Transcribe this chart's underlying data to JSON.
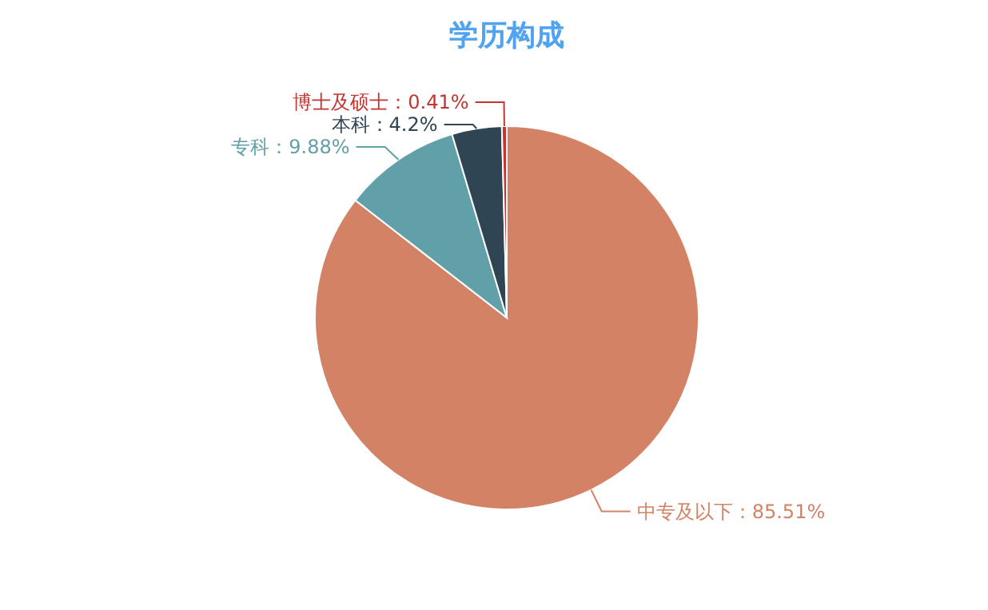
{
  "chart_data": {
    "type": "pie",
    "title": "学历构成",
    "categories": [
      "中专及以下",
      "专科",
      "本科",
      "博士及硕士"
    ],
    "values": [
      85.51,
      9.88,
      4.2,
      0.41
    ],
    "value_labels": [
      "85.51%",
      "9.88%",
      "4.2%",
      "0.41%"
    ],
    "colors": [
      "#d48265",
      "#61a0a8",
      "#2f4554",
      "#c23531"
    ]
  }
}
